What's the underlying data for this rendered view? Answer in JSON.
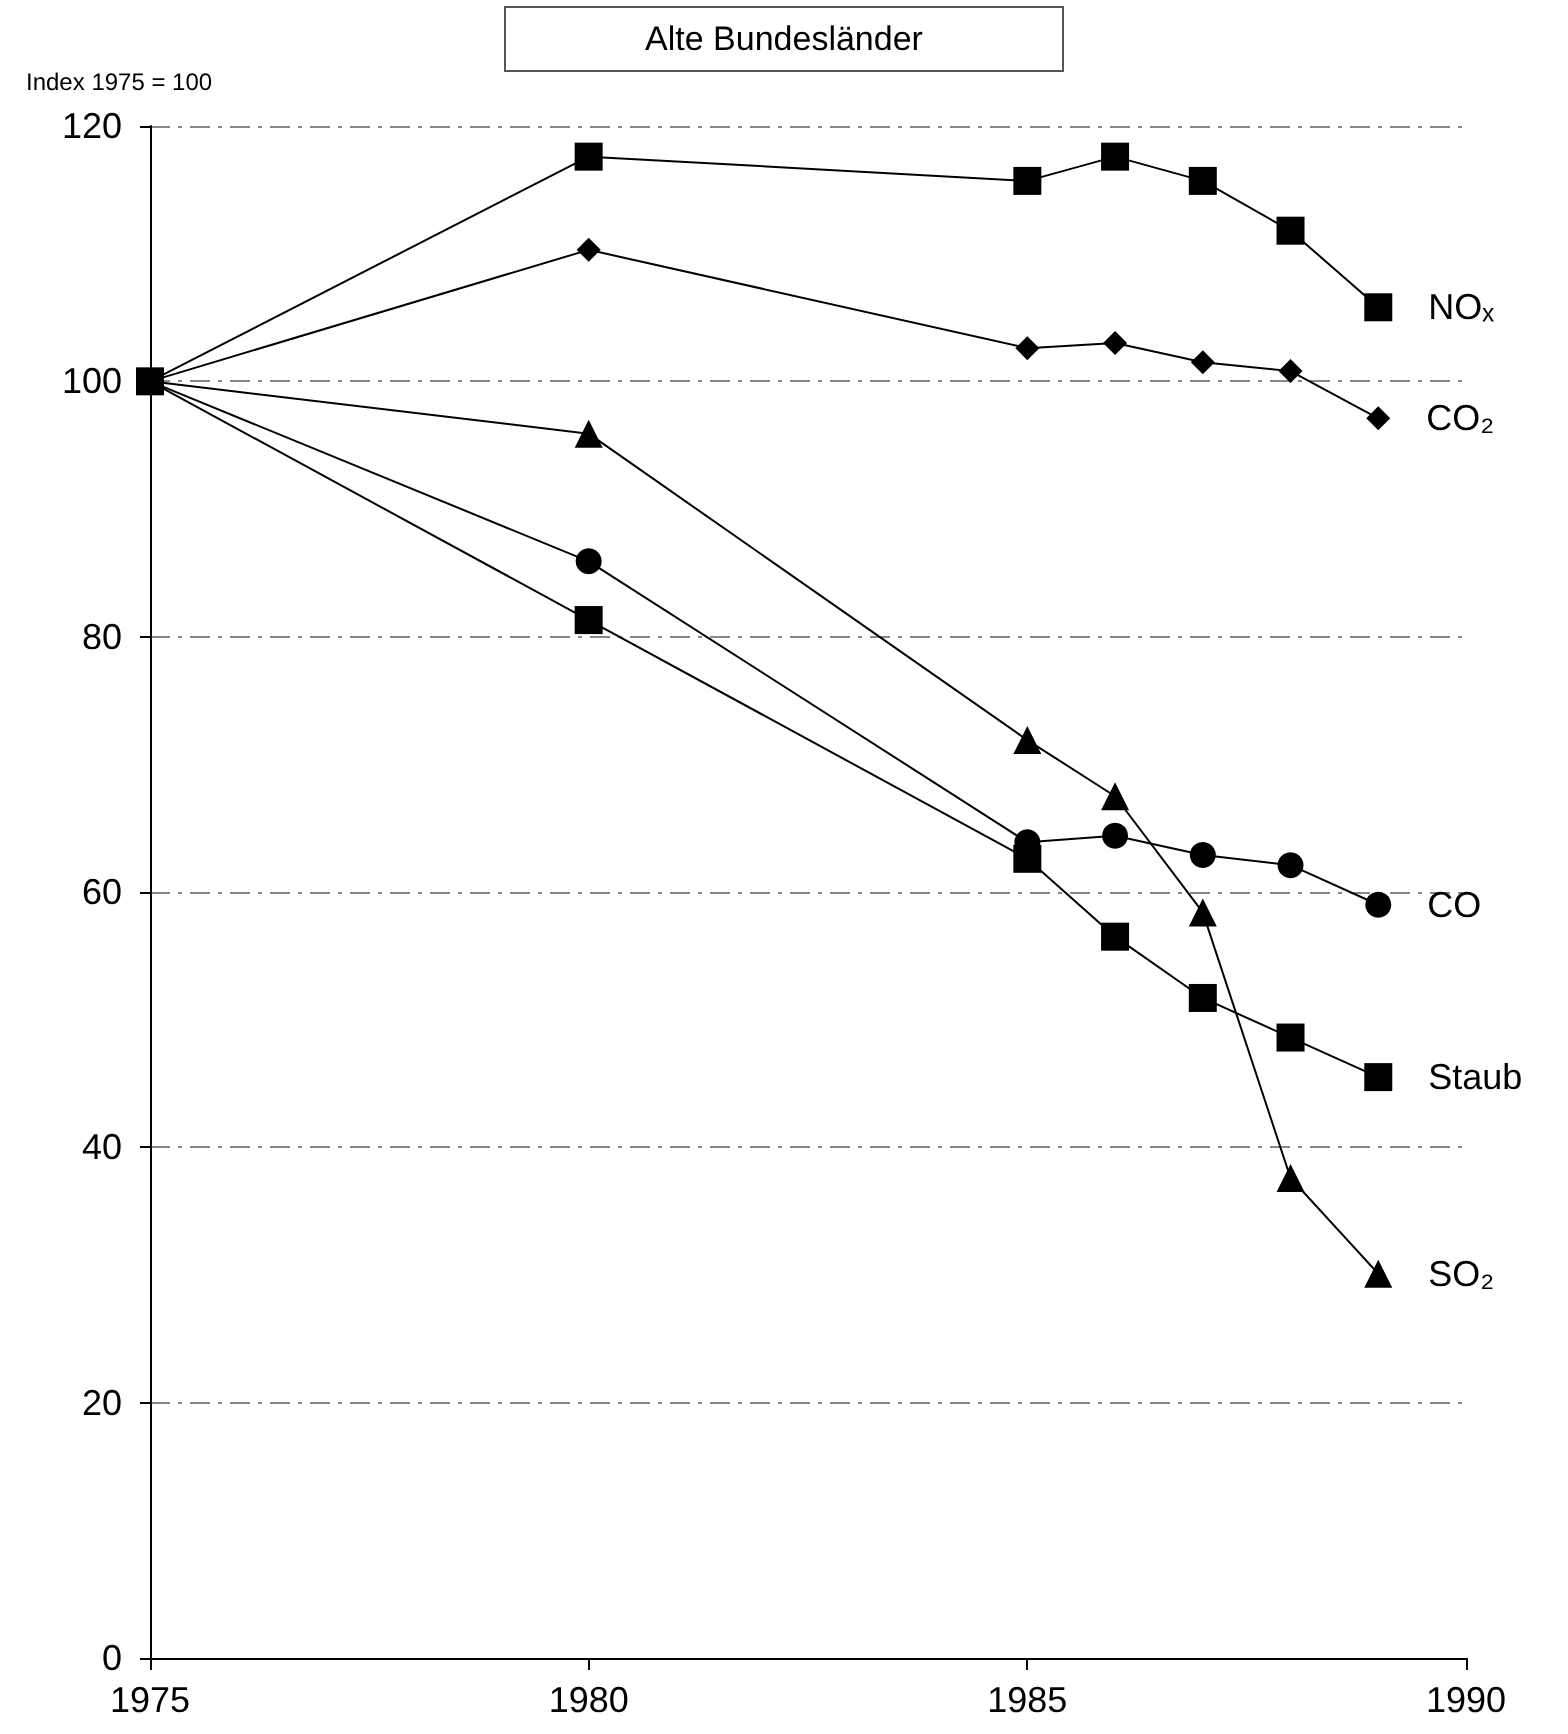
{
  "chart_data": {
    "type": "line",
    "title": "Alte Bundesländer",
    "ylabel": "Index 1975 = 100",
    "x": [
      1975,
      1980,
      1985,
      1986,
      1987,
      1988,
      1989
    ],
    "series": [
      {
        "name": "NOₓ",
        "color": "#000000",
        "marker": "square",
        "values": [
          100,
          117.6,
          115.7,
          117.6,
          115.7,
          111.8,
          105.8
        ]
      },
      {
        "name": "CO₂",
        "color": "#000000",
        "marker": "diamond",
        "values": [
          100,
          110.3,
          102.6,
          103.0,
          101.5,
          100.8,
          97.1
        ]
      },
      {
        "name": "CO",
        "color": "#000000",
        "marker": "circle",
        "values": [
          100,
          85.9,
          63.9,
          64.4,
          62.9,
          62.1,
          59.0
        ]
      },
      {
        "name": "Staub",
        "color": "#000000",
        "marker": "square",
        "values": [
          100,
          81.3,
          62.6,
          56.5,
          51.7,
          48.6,
          45.5
        ]
      },
      {
        "name": "SO₂",
        "color": "#000000",
        "marker": "triangle",
        "values": [
          100,
          95.9,
          71.9,
          67.5,
          58.4,
          37.6,
          30.1
        ]
      }
    ],
    "xlim": [
      1975,
      1990
    ],
    "xticks": [
      1975,
      1980,
      1985,
      1990
    ],
    "ylim": [
      0,
      120
    ],
    "yticks": [
      0,
      20,
      40,
      60,
      80,
      100,
      120
    ],
    "grid": "y",
    "legend": false
  }
}
